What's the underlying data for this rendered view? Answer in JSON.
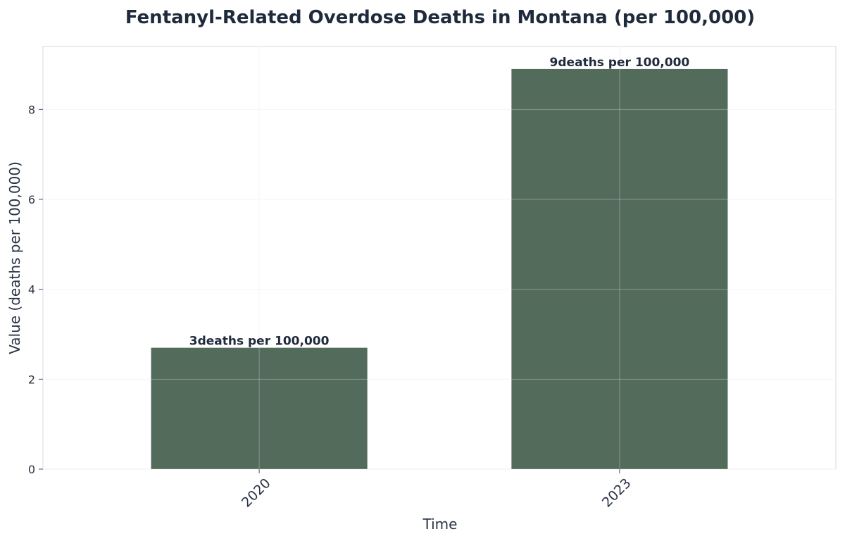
{
  "chart_data": {
    "type": "bar",
    "title": "Fentanyl-Related Overdose Deaths in Montana (per 100,000)",
    "xlabel": "Time",
    "ylabel": "Value (deaths per 100,000)",
    "categories": [
      "2020",
      "2023"
    ],
    "values": [
      2.7,
      8.9
    ],
    "data_labels": [
      "3deaths per 100,000",
      "9deaths per 100,000"
    ],
    "ylim": [
      0,
      9.4
    ],
    "yticks": [
      0,
      2,
      4,
      6,
      8
    ],
    "grid": true,
    "legend": "none",
    "bar_color": "#536b5b"
  }
}
